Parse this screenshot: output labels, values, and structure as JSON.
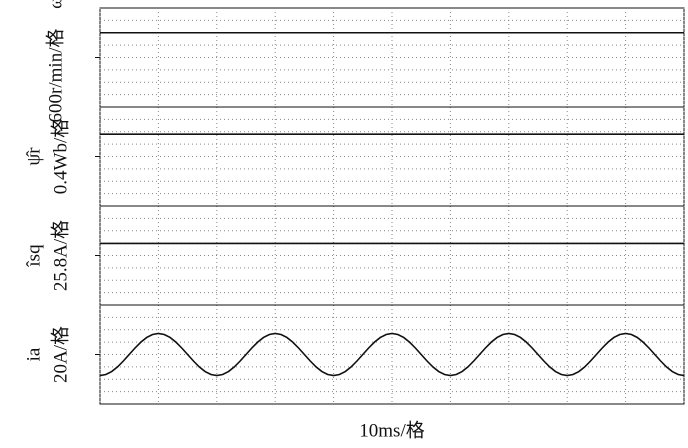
{
  "chart_data": [
    {
      "type": "line",
      "symbol": "ω̂r",
      "scale": "600r/min/格",
      "xlim": [
        0,
        100
      ],
      "ylim": [
        -600,
        600
      ],
      "xgrid": [
        0,
        10,
        20,
        30,
        40,
        50,
        60,
        70,
        80,
        90,
        100
      ],
      "ygrid": [
        -450,
        -300,
        -150,
        0,
        150,
        300,
        450
      ],
      "yticks": [
        0
      ],
      "x": [
        0,
        100
      ],
      "series": [
        {
          "color": "#111111",
          "values": [
            300,
            300
          ]
        }
      ]
    },
    {
      "type": "line",
      "symbol": "ψ̂r",
      "scale": "0.4Wb/格",
      "xlim": [
        0,
        100
      ],
      "ylim": [
        -0.4,
        0.4
      ],
      "xgrid": [
        0,
        10,
        20,
        30,
        40,
        50,
        60,
        70,
        80,
        90,
        100
      ],
      "ygrid": [
        -0.3,
        -0.2,
        -0.1,
        0,
        0.1,
        0.2,
        0.3
      ],
      "yticks": [
        0
      ],
      "x": [
        0,
        100
      ],
      "series": [
        {
          "color": "#111111",
          "values": [
            0.18,
            0.18
          ]
        }
      ]
    },
    {
      "type": "line",
      "symbol": "îsq",
      "scale": "25.8A/格",
      "xlim": [
        0,
        100
      ],
      "ylim": [
        -25.8,
        25.8
      ],
      "xgrid": [
        0,
        10,
        20,
        30,
        40,
        50,
        60,
        70,
        80,
        90,
        100
      ],
      "ygrid": [
        -19.35,
        -12.9,
        -6.45,
        0,
        6.45,
        12.9,
        19.35
      ],
      "yticks": [
        0
      ],
      "x": [
        0,
        100
      ],
      "series": [
        {
          "color": "#111111",
          "values": [
            6.3,
            6.3
          ]
        }
      ]
    },
    {
      "type": "line",
      "symbol": "ia",
      "scale": "20A/格",
      "xlabel": "10ms/格",
      "xlim": [
        0,
        100
      ],
      "ylim": [
        -20,
        20
      ],
      "xgrid": [
        0,
        10,
        20,
        30,
        40,
        50,
        60,
        70,
        80,
        90,
        100
      ],
      "ygrid": [
        -15,
        -10,
        -5,
        0,
        5,
        10,
        15
      ],
      "yticks": [
        0
      ],
      "x": [
        0,
        1,
        2,
        3,
        4,
        5,
        6,
        7,
        8,
        9,
        10,
        11,
        12,
        13,
        14,
        15,
        16,
        17,
        18,
        19,
        20,
        21,
        22,
        23,
        24,
        25,
        26,
        27,
        28,
        29,
        30,
        31,
        32,
        33,
        34,
        35,
        36,
        37,
        38,
        39,
        40,
        41,
        42,
        43,
        44,
        45,
        46,
        47,
        48,
        49,
        50,
        51,
        52,
        53,
        54,
        55,
        56,
        57,
        58,
        59,
        60,
        61,
        62,
        63,
        64,
        65,
        66,
        67,
        68,
        69,
        70,
        71,
        72,
        73,
        74,
        75,
        76,
        77,
        78,
        79,
        80,
        81,
        82,
        83,
        84,
        85,
        86,
        87,
        88,
        89,
        90,
        91,
        92,
        93,
        94,
        95,
        96,
        97,
        98,
        99,
        100
      ],
      "series": [
        {
          "color": "#111111",
          "values": [
            -8.5,
            -8.08,
            -6.88,
            -5,
            -2.63,
            0,
            2.63,
            5,
            6.88,
            8.08,
            8.5,
            8.08,
            6.88,
            5,
            2.63,
            0,
            -2.63,
            -5,
            -6.88,
            -8.08,
            -8.5,
            -8.08,
            -6.88,
            -5,
            -2.63,
            0,
            2.63,
            5,
            6.88,
            8.08,
            8.5,
            8.08,
            6.88,
            5,
            2.63,
            0,
            -2.63,
            -5,
            -6.88,
            -8.08,
            -8.5,
            -8.08,
            -6.88,
            -5,
            -2.63,
            0,
            2.63,
            5,
            6.88,
            8.08,
            8.5,
            8.08,
            6.88,
            5,
            2.63,
            0,
            -2.63,
            -5,
            -6.88,
            -8.08,
            -8.5,
            -8.08,
            -6.88,
            -5,
            -2.63,
            0,
            2.63,
            5,
            6.88,
            8.08,
            8.5,
            8.08,
            6.88,
            5,
            2.63,
            0,
            -2.63,
            -5,
            -6.88,
            -8.08,
            -8.5,
            -8.08,
            -6.88,
            -5,
            -2.63,
            0,
            2.63,
            5,
            6.88,
            8.08,
            8.5,
            8.08,
            6.88,
            5,
            2.63,
            0,
            -2.63,
            -5,
            -6.88,
            -8.08,
            -8.5
          ]
        }
      ]
    }
  ]
}
